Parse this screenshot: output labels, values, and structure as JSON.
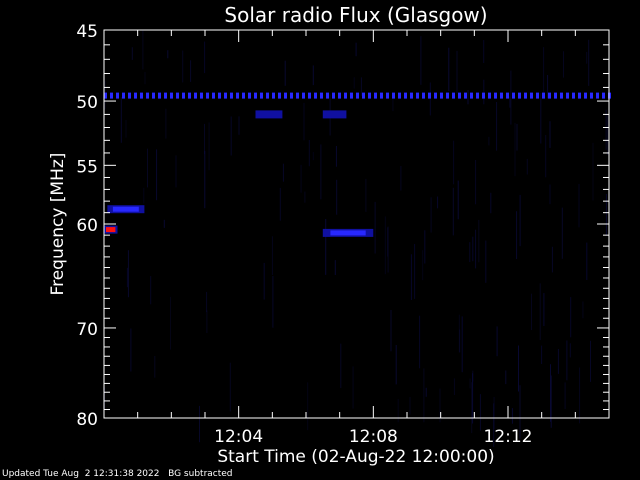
{
  "chart_data": {
    "type": "heatmap",
    "title": "Solar radio Flux (Glasgow)",
    "xlabel": "Start Time (02-Aug-22 12:00:00)",
    "ylabel": "Frequency [MHz]",
    "x_range_minutes": [
      0,
      15
    ],
    "x_ticks": [
      {
        "minute": 4,
        "label": "12:04"
      },
      {
        "minute": 8,
        "label": "12:08"
      },
      {
        "minute": 12,
        "label": "12:12"
      }
    ],
    "y_scale": "log",
    "y_range_mhz": [
      45,
      80
    ],
    "y_ticks": [
      {
        "value": 45,
        "label": "45"
      },
      {
        "value": 50,
        "label": "50"
      },
      {
        "value": 55,
        "label": "55"
      },
      {
        "value": 60,
        "label": "60"
      },
      {
        "value": 70,
        "label": "70"
      },
      {
        "value": 80,
        "label": "80"
      }
    ],
    "colormap": [
      "#000000",
      "#1010a0",
      "#2828ff",
      "#ff1010"
    ],
    "features": [
      {
        "type": "band",
        "freq_mhz": 49.6,
        "minute_start": 0,
        "minute_end": 15,
        "intensity": 0.7
      },
      {
        "type": "burst",
        "freq_mhz": 60.5,
        "minute_start": 0,
        "minute_end": 0.4,
        "intensity": 1.0
      },
      {
        "type": "burst",
        "freq_mhz": 58.7,
        "minute_start": 0.1,
        "minute_end": 1.2,
        "intensity": 0.7
      },
      {
        "type": "burst",
        "freq_mhz": 60.8,
        "minute_start": 6.5,
        "minute_end": 8.0,
        "intensity": 0.85
      },
      {
        "type": "burst",
        "freq_mhz": 51.0,
        "minute_start": 6.5,
        "minute_end": 7.2,
        "intensity": 0.55
      },
      {
        "type": "burst",
        "freq_mhz": 51.0,
        "minute_start": 4.5,
        "minute_end": 5.3,
        "intensity": 0.4
      }
    ]
  },
  "footer": {
    "updated": "Updated Tue Aug  2 12:31:38 2022",
    "note": "BG subtracted"
  }
}
